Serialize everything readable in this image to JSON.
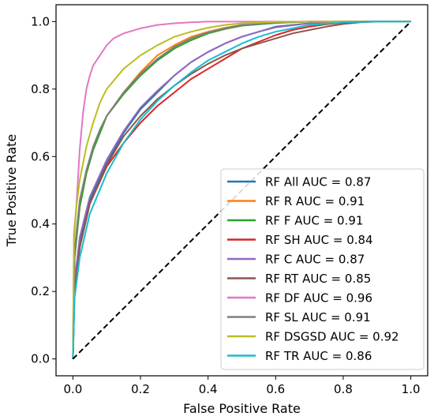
{
  "chart_data": {
    "type": "line",
    "xlabel": "False Positive Rate",
    "ylabel": "True Positive Rate",
    "xlim": [
      -0.05,
      1.05
    ],
    "ylim": [
      -0.05,
      1.05
    ],
    "xticks": [
      0.0,
      0.2,
      0.4,
      0.6,
      0.8,
      1.0
    ],
    "yticks": [
      0.0,
      0.2,
      0.4,
      0.6,
      0.8,
      1.0
    ],
    "xtick_labels": [
      "0.0",
      "0.2",
      "0.4",
      "0.6",
      "0.8",
      "1.0"
    ],
    "ytick_labels": [
      "0.0",
      "0.2",
      "0.4",
      "0.6",
      "0.8",
      "1.0"
    ],
    "grid": false,
    "legend_position": "lower-right",
    "diagonal": {
      "x": [
        0,
        1
      ],
      "y": [
        0,
        1
      ],
      "color": "#000000",
      "style": "dashed"
    },
    "series": [
      {
        "name": "RF All AUC = 0.87",
        "color": "#1f77b4",
        "x": [
          0,
          0.005,
          0.02,
          0.05,
          0.1,
          0.15,
          0.2,
          0.25,
          0.3,
          0.35,
          0.4,
          0.45,
          0.5,
          0.55,
          0.6,
          0.7,
          0.8,
          0.9,
          1.0
        ],
        "y": [
          0,
          0.22,
          0.35,
          0.47,
          0.58,
          0.67,
          0.74,
          0.79,
          0.84,
          0.88,
          0.91,
          0.935,
          0.955,
          0.97,
          0.985,
          0.995,
          1.0,
          1.0,
          1.0
        ]
      },
      {
        "name": "RF R AUC = 0.91",
        "color": "#ff7f0e",
        "x": [
          0,
          0.005,
          0.02,
          0.04,
          0.06,
          0.08,
          0.1,
          0.15,
          0.2,
          0.25,
          0.3,
          0.35,
          0.4,
          0.45,
          0.5,
          0.6,
          0.7,
          0.8,
          1.0
        ],
        "y": [
          0,
          0.3,
          0.45,
          0.55,
          0.62,
          0.67,
          0.72,
          0.79,
          0.85,
          0.9,
          0.93,
          0.955,
          0.97,
          0.982,
          0.99,
          0.997,
          1.0,
          1.0,
          1.0
        ]
      },
      {
        "name": "RF F AUC = 0.91",
        "color": "#2ca02c",
        "x": [
          0,
          0.005,
          0.02,
          0.04,
          0.06,
          0.08,
          0.1,
          0.15,
          0.2,
          0.25,
          0.3,
          0.35,
          0.4,
          0.45,
          0.5,
          0.6,
          0.7,
          0.8,
          1.0
        ],
        "y": [
          0,
          0.3,
          0.45,
          0.55,
          0.62,
          0.67,
          0.72,
          0.785,
          0.84,
          0.885,
          0.92,
          0.945,
          0.965,
          0.978,
          0.988,
          0.996,
          1.0,
          1.0,
          1.0
        ]
      },
      {
        "name": "RF SH AUC = 0.84",
        "color": "#d62728",
        "x": [
          0,
          0.005,
          0.02,
          0.05,
          0.1,
          0.15,
          0.2,
          0.25,
          0.3,
          0.35,
          0.4,
          0.45,
          0.5,
          0.55,
          0.6,
          0.65,
          0.7,
          0.75,
          0.8,
          0.85,
          0.9,
          1.0
        ],
        "y": [
          0,
          0.2,
          0.33,
          0.46,
          0.57,
          0.64,
          0.7,
          0.75,
          0.79,
          0.83,
          0.86,
          0.89,
          0.92,
          0.94,
          0.96,
          0.975,
          0.985,
          0.992,
          0.997,
          1.0,
          1.0,
          1.0
        ]
      },
      {
        "name": "RF C AUC = 0.87",
        "color": "#9467bd",
        "x": [
          0,
          0.005,
          0.02,
          0.05,
          0.1,
          0.15,
          0.2,
          0.25,
          0.3,
          0.35,
          0.4,
          0.45,
          0.5,
          0.55,
          0.6,
          0.7,
          0.8,
          0.9,
          1.0
        ],
        "y": [
          0,
          0.23,
          0.36,
          0.48,
          0.59,
          0.675,
          0.745,
          0.795,
          0.84,
          0.88,
          0.91,
          0.935,
          0.955,
          0.97,
          0.983,
          0.995,
          1.0,
          1.0,
          1.0
        ]
      },
      {
        "name": "RF RT AUC = 0.85",
        "color": "#8c564b",
        "x": [
          0,
          0.005,
          0.02,
          0.05,
          0.1,
          0.15,
          0.2,
          0.25,
          0.3,
          0.35,
          0.4,
          0.45,
          0.5,
          0.55,
          0.6,
          0.65,
          0.7,
          0.75,
          0.8,
          0.85,
          0.9,
          1.0
        ],
        "y": [
          0,
          0.2,
          0.33,
          0.46,
          0.575,
          0.66,
          0.72,
          0.77,
          0.81,
          0.845,
          0.875,
          0.9,
          0.92,
          0.935,
          0.95,
          0.965,
          0.975,
          0.985,
          0.993,
          0.998,
          1.0,
          1.0
        ]
      },
      {
        "name": "RF DF AUC = 0.96",
        "color": "#e377c2",
        "x": [
          0,
          0.003,
          0.01,
          0.02,
          0.03,
          0.04,
          0.05,
          0.06,
          0.08,
          0.1,
          0.12,
          0.15,
          0.2,
          0.25,
          0.3,
          0.35,
          0.4,
          0.5,
          0.6,
          0.8,
          1.0
        ],
        "y": [
          0,
          0.37,
          0.45,
          0.62,
          0.73,
          0.8,
          0.84,
          0.87,
          0.9,
          0.93,
          0.95,
          0.965,
          0.98,
          0.99,
          0.995,
          0.998,
          1.0,
          1.0,
          1.0,
          1.0,
          1.0
        ]
      },
      {
        "name": "RF SL AUC = 0.91",
        "color": "#7f7f7f",
        "x": [
          0,
          0.005,
          0.02,
          0.04,
          0.06,
          0.08,
          0.1,
          0.15,
          0.2,
          0.25,
          0.3,
          0.35,
          0.4,
          0.45,
          0.5,
          0.6,
          0.7,
          0.8,
          1.0
        ],
        "y": [
          0,
          0.32,
          0.47,
          0.56,
          0.63,
          0.68,
          0.72,
          0.79,
          0.845,
          0.89,
          0.925,
          0.95,
          0.968,
          0.98,
          0.99,
          0.997,
          1.0,
          1.0,
          1.0
        ]
      },
      {
        "name": "RF DSGSD AUC = 0.92",
        "color": "#bcbd22",
        "x": [
          0,
          0.003,
          0.01,
          0.02,
          0.04,
          0.06,
          0.08,
          0.1,
          0.15,
          0.2,
          0.25,
          0.3,
          0.35,
          0.4,
          0.45,
          0.5,
          0.6,
          0.7,
          0.8,
          1.0
        ],
        "y": [
          0,
          0.35,
          0.45,
          0.53,
          0.63,
          0.7,
          0.76,
          0.8,
          0.86,
          0.9,
          0.93,
          0.955,
          0.97,
          0.982,
          0.99,
          0.995,
          0.999,
          1.0,
          1.0,
          1.0
        ]
      },
      {
        "name": "RF TR AUC = 0.86",
        "color": "#17becf",
        "x": [
          0,
          0.005,
          0.02,
          0.05,
          0.1,
          0.15,
          0.2,
          0.25,
          0.3,
          0.35,
          0.4,
          0.45,
          0.5,
          0.55,
          0.6,
          0.65,
          0.7,
          0.8,
          0.9,
          1.0
        ],
        "y": [
          0,
          0.18,
          0.3,
          0.43,
          0.55,
          0.64,
          0.71,
          0.765,
          0.81,
          0.85,
          0.885,
          0.91,
          0.935,
          0.955,
          0.97,
          0.98,
          0.99,
          0.998,
          1.0,
          1.0
        ]
      }
    ]
  }
}
